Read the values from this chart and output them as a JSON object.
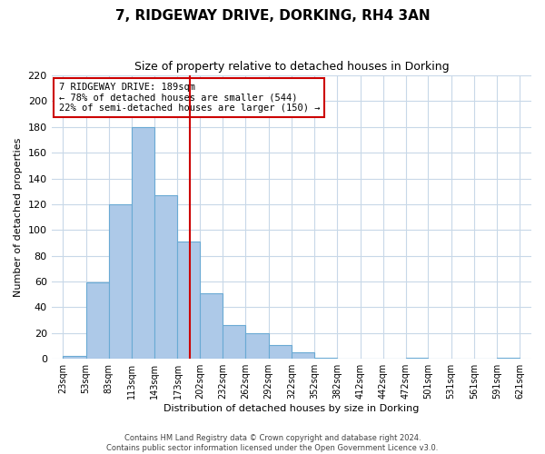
{
  "title": "7, RIDGEWAY DRIVE, DORKING, RH4 3AN",
  "subtitle": "Size of property relative to detached houses in Dorking",
  "xlabel": "Distribution of detached houses by size in Dorking",
  "ylabel": "Number of detached properties",
  "bar_color": "#adc9e8",
  "bar_edge_color": "#6aaad4",
  "bin_edges": [
    23,
    53,
    83,
    113,
    143,
    173,
    202,
    232,
    262,
    292,
    322,
    352,
    382,
    412,
    442,
    472,
    501,
    531,
    561,
    591,
    621
  ],
  "bin_labels": [
    "23sqm",
    "53sqm",
    "83sqm",
    "113sqm",
    "143sqm",
    "173sqm",
    "202sqm",
    "232sqm",
    "262sqm",
    "292sqm",
    "322sqm",
    "352sqm",
    "382sqm",
    "412sqm",
    "442sqm",
    "472sqm",
    "501sqm",
    "531sqm",
    "561sqm",
    "591sqm",
    "621sqm"
  ],
  "counts": [
    2,
    59,
    120,
    180,
    127,
    91,
    51,
    26,
    20,
    11,
    5,
    1,
    0,
    0,
    0,
    1,
    0,
    0,
    0,
    1
  ],
  "vline_x": 189,
  "vline_color": "#cc0000",
  "annotation_box_color": "#cc0000",
  "annotation_lines": [
    "7 RIDGEWAY DRIVE: 189sqm",
    "← 78% of detached houses are smaller (544)",
    "22% of semi-detached houses are larger (150) →"
  ],
  "ylim": [
    0,
    220
  ],
  "yticks": [
    0,
    20,
    40,
    60,
    80,
    100,
    120,
    140,
    160,
    180,
    200,
    220
  ],
  "footer_lines": [
    "Contains HM Land Registry data © Crown copyright and database right 2024.",
    "Contains public sector information licensed under the Open Government Licence v3.0."
  ],
  "background_color": "#ffffff",
  "grid_color": "#c8d8e8"
}
